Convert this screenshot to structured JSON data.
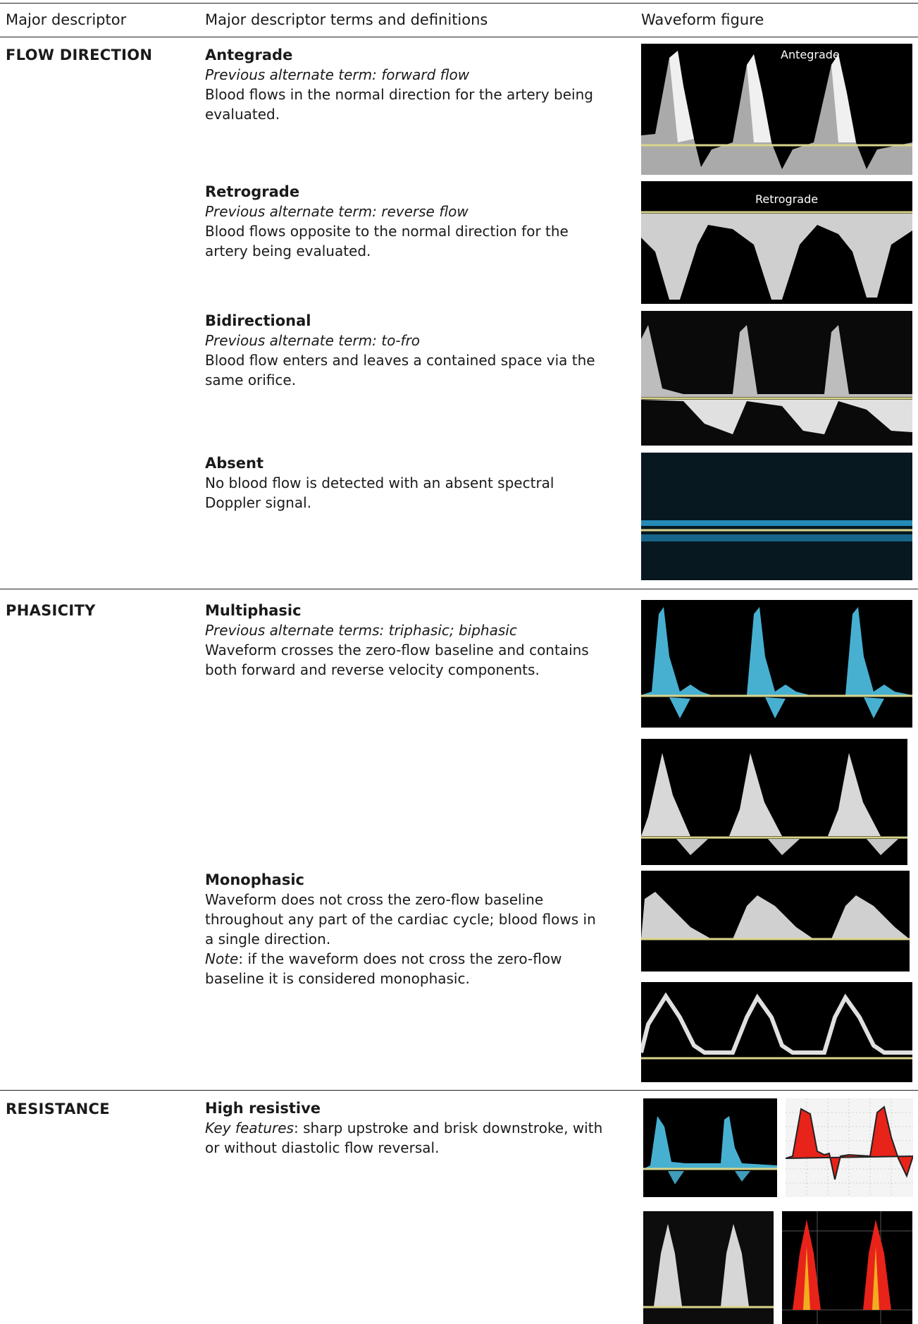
{
  "header": {
    "col1": "Major descriptor",
    "col2": "Major descriptor terms and definitions",
    "col3": "Waveform figure"
  },
  "sections": {
    "flow": {
      "category": "FLOW DIRECTION",
      "antegrade": {
        "term": "Antegrade",
        "alt": "Previous alternate term: forward flow",
        "def": "Blood flows in the normal direction for the artery being evaluated.",
        "fig_label": "Antegrade"
      },
      "retrograde": {
        "term": "Retrograde",
        "alt": "Previous alternate term: reverse flow",
        "def": "Blood flows opposite to the normal direction for the artery being evaluated.",
        "fig_label": "Retrograde"
      },
      "bidirectional": {
        "term": "Bidirectional",
        "alt": "Previous alternate term: to-fro",
        "def": "Blood flow enters and leaves a contained space via the same orifice."
      },
      "absent": {
        "term": "Absent",
        "def": "No blood flow is detected with an absent spectral Doppler signal."
      }
    },
    "phasicity": {
      "category": "PHASICITY",
      "multiphasic": {
        "term": "Multiphasic",
        "alt": "Previous alternate terms: triphasic; biphasic",
        "def": "Waveform crosses the zero-flow baseline and contains both forward and reverse velocity components."
      },
      "monophasic": {
        "term": "Monophasic",
        "def": "Waveform does not cross the zero-flow baseline throughout any part of the cardiac cycle; blood flows in a single direction.",
        "note_label": "Note",
        "note_text": ": if the waveform does not cross the zero-flow baseline it is considered monophasic."
      }
    },
    "resistance": {
      "category": "RESISTANCE",
      "high": {
        "term": "High resistive",
        "key_label": "Key features",
        "key_text": ": sharp upstroke and brisk downstroke, with or without diastolic flow reversal."
      }
    }
  },
  "colors": {
    "baseline": "#d8d48a",
    "doppler_white": "#e6e6e6",
    "doppler_cyan": "#4fc3e8",
    "waveform_red": "#e8231a"
  }
}
